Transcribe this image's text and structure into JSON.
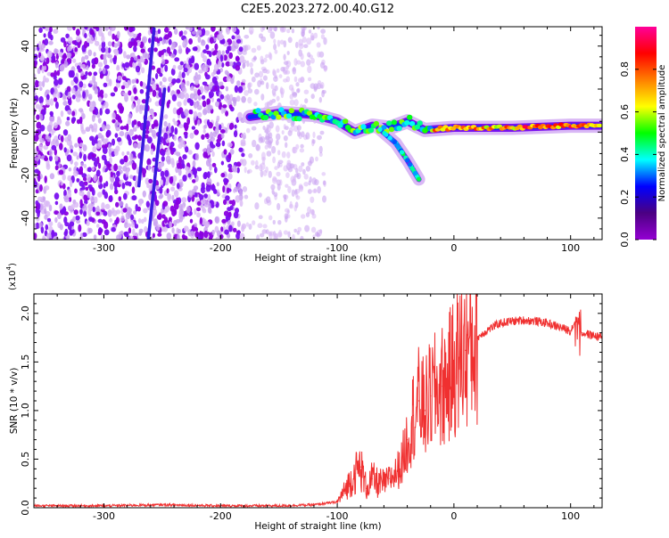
{
  "figure_title": "C2E5.2023.272.00.40.G12",
  "chart_data": [
    {
      "type": "heatmap",
      "xlabel": "Height of straight line (km)",
      "ylabel": "Frequency (Hz)",
      "xlim": [
        -360,
        127
      ],
      "ylim": [
        -50,
        49
      ],
      "xticks": [
        -300,
        -200,
        -100,
        0,
        100
      ],
      "yticks": [
        -40,
        -20,
        0,
        20,
        40
      ],
      "colorbar": {
        "label": "Normalized spectral amplitude",
        "range": [
          0.0,
          1.0
        ],
        "ticks": [
          0.0,
          0.2,
          0.4,
          0.6,
          0.8
        ],
        "colormap": [
          "#9400d3",
          "#4b0082",
          "#0000ff",
          "#00ffff",
          "#00ff00",
          "#ffff00",
          "#ff7f00",
          "#ff0000",
          "#ff0099"
        ]
      },
      "features": {
        "noise_region_x": [
          -360,
          -110
        ],
        "dense_noise_x": [
          -360,
          -180
        ],
        "main_signal_track": [
          {
            "x": -175,
            "y": 7
          },
          {
            "x": -150,
            "y": 9
          },
          {
            "x": -120,
            "y": 8
          },
          {
            "x": -100,
            "y": 5
          },
          {
            "x": -85,
            "y": 0
          },
          {
            "x": -70,
            "y": 3
          },
          {
            "x": -55,
            "y": 2
          },
          {
            "x": -40,
            "y": 5
          },
          {
            "x": -25,
            "y": 1
          },
          {
            "x": 0,
            "y": 2
          },
          {
            "x": 50,
            "y": 2
          },
          {
            "x": 100,
            "y": 3
          },
          {
            "x": 127,
            "y": 3
          }
        ],
        "descending_branch": [
          {
            "x": -65,
            "y": 2
          },
          {
            "x": -50,
            "y": -5
          },
          {
            "x": -40,
            "y": -13
          },
          {
            "x": -30,
            "y": -22
          }
        ],
        "diagonal_streaks": [
          {
            "x1": -270,
            "y1": -25,
            "x2": -257,
            "y2": 48
          },
          {
            "x1": -262,
            "y1": -50,
            "x2": -248,
            "y2": 20
          }
        ]
      }
    },
    {
      "type": "line",
      "xlabel": "Height of straight line (km)",
      "ylabel": "SNR (10 * v/v)",
      "yscale_label": "(x10",
      "yscale_exp": "4",
      "yscale_close": ")",
      "xlim": [
        -360,
        127
      ],
      "ylim": [
        0.0,
        2.2
      ],
      "xticks": [
        -300,
        -200,
        -100,
        0,
        100
      ],
      "yticks": [
        0.0,
        0.5,
        1.0,
        1.5,
        2.0
      ],
      "yticklabels": [
        "0.0",
        "0.5",
        "1.0",
        "1.5",
        "2.0"
      ],
      "color": "#f03030",
      "series": [
        {
          "x": [
            -360,
            -300,
            -250,
            -200,
            -150,
            -120,
            -100,
            -95,
            -90,
            -85,
            -80,
            -75,
            -70,
            -65,
            -60,
            -55,
            -50,
            -45,
            -40,
            -35,
            -30,
            -25,
            -20,
            -15,
            -10,
            -5,
            0,
            10,
            20,
            30,
            40,
            50,
            60,
            70,
            80,
            90,
            100,
            105,
            110,
            120,
            127
          ],
          "y": [
            0.02,
            0.02,
            0.03,
            0.02,
            0.02,
            0.03,
            0.06,
            0.15,
            0.25,
            0.35,
            0.42,
            0.2,
            0.3,
            0.25,
            0.25,
            0.3,
            0.35,
            0.45,
            0.7,
            0.95,
            1.1,
            1.0,
            1.15,
            1.2,
            1.25,
            1.3,
            1.45,
            1.62,
            1.75,
            1.84,
            1.9,
            1.92,
            1.93,
            1.92,
            1.9,
            1.86,
            1.82,
            1.95,
            1.8,
            1.77,
            1.76
          ]
        }
      ]
    }
  ]
}
